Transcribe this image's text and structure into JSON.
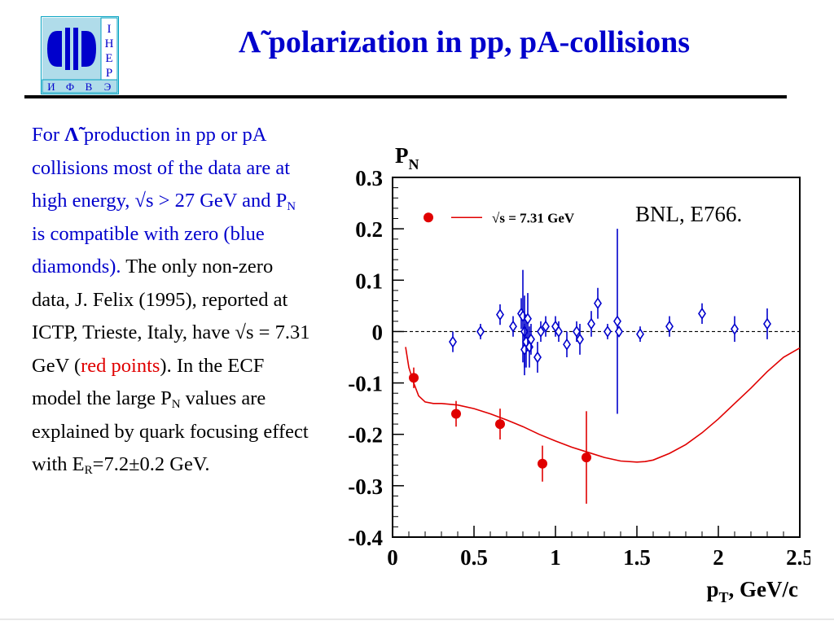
{
  "slide": {
    "title": "Λ̃ polarization in pp, pA-collisions",
    "logo_letters": [
      "И",
      "Ф",
      "В",
      "Э"
    ],
    "logo_side_letters": [
      "I",
      "H",
      "E",
      "P"
    ],
    "text": {
      "p1_a": "For ",
      "p1_lambda": "Λ̃",
      "p1_b": " production in pp or pA collisions most of the data are at high energy, √s > 27 GeV and P",
      "p1_sub": "N",
      "p1_c": " is compatible with zero (blue diamonds).",
      "p2_a": "The only non-zero data, J. Felix (1995), reported at ICTP, Trieste, Italy, have √s = 7.31 GeV (",
      "p2_red": "red points",
      "p2_b": "). In the ECF model the large P",
      "p2_sub1": "N",
      "p2_c": " values are explained by quark focusing effect with E",
      "p2_sub2": "R",
      "p2_d": "=7.2±0.2 GeV."
    },
    "annotation": "BNL, E766."
  },
  "chart_data": {
    "type": "scatter",
    "ylabel": "P",
    "ylabel_sub": "N",
    "xlabel": "p",
    "xlabel_sub": "T",
    "xlabel_rest": ", GeV/c",
    "xlim": [
      0,
      2.5
    ],
    "ylim": [
      -0.4,
      0.3
    ],
    "x_ticks": [
      {
        "v": 0,
        "label": "0"
      },
      {
        "v": 0.5,
        "label": "0.5"
      },
      {
        "v": 1,
        "label": "1"
      },
      {
        "v": 1.5,
        "label": "1.5"
      },
      {
        "v": 2,
        "label": "2"
      },
      {
        "v": 2.5,
        "label": "2.5"
      }
    ],
    "y_ticks": [
      {
        "v": 0.3,
        "label": "0.3"
      },
      {
        "v": 0.2,
        "label": "0.2"
      },
      {
        "v": 0.1,
        "label": "0.1"
      },
      {
        "v": 0,
        "label": "0"
      },
      {
        "v": -0.1,
        "label": "-0.1"
      },
      {
        "v": -0.2,
        "label": "-0.2"
      },
      {
        "v": -0.3,
        "label": "-0.3"
      },
      {
        "v": -0.4,
        "label": "-0.4"
      }
    ],
    "zero_line": true,
    "legend": {
      "label": "√s = 7.31 GeV",
      "placement": "top-left"
    },
    "colors": {
      "blue": "#0000cc",
      "red": "#e00000",
      "axis": "#000000"
    },
    "series": [
      {
        "marker": "diamond",
        "color": "#0000cc",
        "points": [
          {
            "x": 0.37,
            "y": -0.02,
            "err": 0.02
          },
          {
            "x": 0.54,
            "y": 0.0,
            "err": 0.015
          },
          {
            "x": 0.66,
            "y": 0.033,
            "err": 0.02
          },
          {
            "x": 0.74,
            "y": 0.01,
            "err": 0.02
          },
          {
            "x": 0.79,
            "y": 0.035,
            "err": 0.03
          },
          {
            "x": 0.8,
            "y": 0.03,
            "err": 0.09
          },
          {
            "x": 0.81,
            "y": 0.0,
            "err": 0.07
          },
          {
            "x": 0.81,
            "y": -0.035,
            "err": 0.05
          },
          {
            "x": 0.82,
            "y": -0.02,
            "err": 0.05
          },
          {
            "x": 0.83,
            "y": 0.025,
            "err": 0.05
          },
          {
            "x": 0.84,
            "y": -0.03,
            "err": 0.04
          },
          {
            "x": 0.85,
            "y": -0.015,
            "err": 0.03
          },
          {
            "x": 0.89,
            "y": -0.05,
            "err": 0.03
          },
          {
            "x": 0.91,
            "y": 0.0,
            "err": 0.02
          },
          {
            "x": 0.94,
            "y": 0.01,
            "err": 0.02
          },
          {
            "x": 1.0,
            "y": 0.01,
            "err": 0.02
          },
          {
            "x": 1.02,
            "y": 0.0,
            "err": 0.02
          },
          {
            "x": 1.07,
            "y": -0.025,
            "err": 0.025
          },
          {
            "x": 1.13,
            "y": 0.0,
            "err": 0.02
          },
          {
            "x": 1.15,
            "y": -0.015,
            "err": 0.03
          },
          {
            "x": 1.22,
            "y": 0.015,
            "err": 0.025
          },
          {
            "x": 1.26,
            "y": 0.055,
            "err": 0.03
          },
          {
            "x": 1.32,
            "y": 0.0,
            "err": 0.015
          },
          {
            "x": 1.38,
            "y": 0.02,
            "err": 0.18
          },
          {
            "x": 1.39,
            "y": 0.0,
            "err": 0.01
          },
          {
            "x": 1.52,
            "y": -0.005,
            "err": 0.015
          },
          {
            "x": 1.7,
            "y": 0.01,
            "err": 0.02
          },
          {
            "x": 1.9,
            "y": 0.035,
            "err": 0.02
          },
          {
            "x": 2.1,
            "y": 0.005,
            "err": 0.025
          },
          {
            "x": 2.3,
            "y": 0.015,
            "err": 0.03
          }
        ]
      },
      {
        "marker": "circle",
        "color": "#e00000",
        "points": [
          {
            "x": 0.13,
            "y": -0.09,
            "err": 0.02
          },
          {
            "x": 0.39,
            "y": -0.16,
            "err": 0.025
          },
          {
            "x": 0.66,
            "y": -0.18,
            "err": 0.03
          },
          {
            "x": 0.92,
            "y": -0.257,
            "err": 0.035
          },
          {
            "x": 1.19,
            "y": -0.245,
            "err": 0.09
          }
        ]
      }
    ],
    "curve": {
      "color": "#e00000",
      "x": [
        0.08,
        0.1,
        0.13,
        0.16,
        0.2,
        0.25,
        0.3,
        0.4,
        0.5,
        0.6,
        0.7,
        0.8,
        0.9,
        1.0,
        1.1,
        1.2,
        1.3,
        1.4,
        1.5,
        1.55,
        1.6,
        1.7,
        1.8,
        1.9,
        2.0,
        2.1,
        2.2,
        2.3,
        2.4,
        2.5
      ],
      "y": [
        -0.03,
        -0.07,
        -0.1,
        -0.125,
        -0.137,
        -0.14,
        -0.14,
        -0.143,
        -0.15,
        -0.16,
        -0.172,
        -0.185,
        -0.2,
        -0.213,
        -0.225,
        -0.235,
        -0.245,
        -0.252,
        -0.254,
        -0.253,
        -0.25,
        -0.237,
        -0.22,
        -0.197,
        -0.17,
        -0.14,
        -0.11,
        -0.078,
        -0.05,
        -0.032
      ]
    }
  }
}
